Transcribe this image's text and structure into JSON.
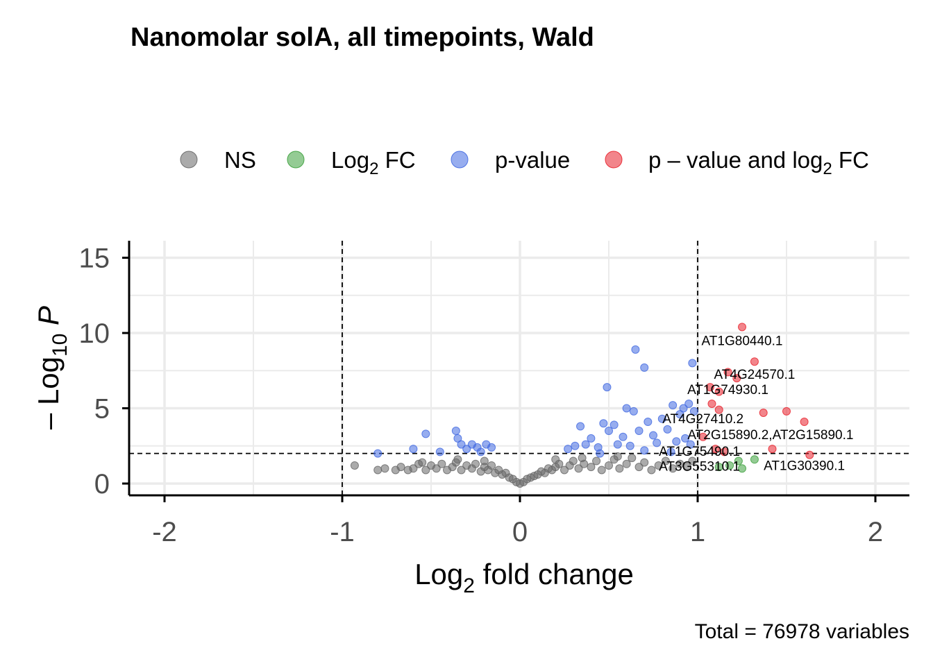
{
  "chart_data": {
    "type": "scatter",
    "title": "Nanomolar solA, all timepoints, Wald",
    "xlabel": "Log2 fold change",
    "ylabel": "-Log10 P",
    "caption": "Total = 76978 variables",
    "xlim": [
      -2.2,
      2.2
    ],
    "ylim": [
      -0.8,
      16.0
    ],
    "x_ticks": [
      -2,
      -1,
      0,
      1,
      2
    ],
    "y_ticks": [
      0,
      5,
      10,
      15
    ],
    "x_tick_labels": [
      "-2",
      "-1",
      "0",
      "1",
      "2"
    ],
    "y_tick_labels": [
      "0",
      "5",
      "10",
      "15"
    ],
    "grid": true,
    "legend_position": "top",
    "fc_cutoff": 1,
    "p_cutoff_log10": 2,
    "colors": {
      "NS": "#666666",
      "Log2 FC": "#3ca03c",
      "p-value": "#4169e1",
      "p - value and log2 FC": "#e8212b",
      "grid": "#ebebeb",
      "axis": "#000000"
    },
    "legend": [
      {
        "key": "NS",
        "base": "NS",
        "sub": "",
        "tail": ""
      },
      {
        "key": "Log2 FC",
        "base": "Log",
        "sub": "2",
        "tail": " FC"
      },
      {
        "key": "p-value",
        "base": "p-value",
        "sub": "",
        "tail": ""
      },
      {
        "key": "p - value and log2 FC",
        "base": "p – value and log",
        "sub": "2",
        "tail": " FC"
      }
    ],
    "series": [
      {
        "name": "NS",
        "color": "#666666",
        "points": [
          [
            -0.93,
            1.2
          ],
          [
            -0.8,
            0.9
          ],
          [
            -0.76,
            1.0
          ],
          [
            -0.7,
            0.9
          ],
          [
            -0.67,
            1.1
          ],
          [
            -0.63,
            0.9
          ],
          [
            -0.6,
            1.0
          ],
          [
            -0.57,
            1.3
          ],
          [
            -0.53,
            0.9
          ],
          [
            -0.5,
            1.2
          ],
          [
            -0.47,
            1.0
          ],
          [
            -0.44,
            1.3
          ],
          [
            -0.41,
            0.9
          ],
          [
            -0.38,
            1.1
          ],
          [
            -0.36,
            1.4
          ],
          [
            -0.33,
            0.9
          ],
          [
            -0.3,
            1.2
          ],
          [
            -0.27,
            1.0
          ],
          [
            -0.25,
            1.3
          ],
          [
            -0.22,
            0.8
          ],
          [
            -0.2,
            1.1
          ],
          [
            -0.18,
            0.9
          ],
          [
            -0.16,
            1.2
          ],
          [
            -0.14,
            0.7
          ],
          [
            -0.12,
            0.9
          ],
          [
            -0.1,
            0.6
          ],
          [
            -0.08,
            0.7
          ],
          [
            -0.06,
            0.4
          ],
          [
            -0.04,
            0.3
          ],
          [
            -0.02,
            0.1
          ],
          [
            0.0,
            0.0
          ],
          [
            0.02,
            0.1
          ],
          [
            0.04,
            0.3
          ],
          [
            0.06,
            0.4
          ],
          [
            0.08,
            0.5
          ],
          [
            0.1,
            0.6
          ],
          [
            0.12,
            0.8
          ],
          [
            0.14,
            0.7
          ],
          [
            0.16,
            1.0
          ],
          [
            0.18,
            0.9
          ],
          [
            0.2,
            1.1
          ],
          [
            0.22,
            1.3
          ],
          [
            0.25,
            0.9
          ],
          [
            0.28,
            1.2
          ],
          [
            0.3,
            1.5
          ],
          [
            0.33,
            1.0
          ],
          [
            0.36,
            1.3
          ],
          [
            0.4,
            1.1
          ],
          [
            0.43,
            1.5
          ],
          [
            0.46,
            0.9
          ],
          [
            0.5,
            1.2
          ],
          [
            0.53,
            1.6
          ],
          [
            0.56,
            1.0
          ],
          [
            0.6,
            1.3
          ],
          [
            0.63,
            1.7
          ],
          [
            0.67,
            1.1
          ],
          [
            0.7,
            1.4
          ],
          [
            0.74,
            0.9
          ],
          [
            0.78,
            1.2
          ],
          [
            0.82,
            1.5
          ],
          [
            0.86,
            1.0
          ],
          [
            0.9,
            1.3
          ],
          [
            0.94,
            1.1
          ],
          [
            0.97,
            1.5
          ],
          [
            -0.35,
            1.6
          ],
          [
            0.35,
            1.7
          ],
          [
            -0.55,
            1.4
          ],
          [
            0.55,
            1.8
          ],
          [
            -0.2,
            1.5
          ],
          [
            0.2,
            1.6
          ]
        ]
      },
      {
        "name": "Log2 FC",
        "color": "#3ca03c",
        "points": [
          [
            1.12,
            1.1
          ],
          [
            1.18,
            1.2
          ],
          [
            1.23,
            1.5
          ],
          [
            1.25,
            1.0
          ],
          [
            1.32,
            1.6
          ]
        ]
      },
      {
        "name": "p-value",
        "color": "#4169e1",
        "points": [
          [
            -0.8,
            2.0
          ],
          [
            -0.6,
            2.3
          ],
          [
            -0.53,
            3.3
          ],
          [
            -0.36,
            3.5
          ],
          [
            -0.35,
            3.0
          ],
          [
            -0.33,
            2.6
          ],
          [
            -0.3,
            2.3
          ],
          [
            -0.27,
            2.6
          ],
          [
            -0.24,
            2.4
          ],
          [
            -0.22,
            2.1
          ],
          [
            -0.19,
            2.6
          ],
          [
            -0.16,
            2.4
          ],
          [
            -0.45,
            2.1
          ],
          [
            0.27,
            2.3
          ],
          [
            0.31,
            2.5
          ],
          [
            0.34,
            3.8
          ],
          [
            0.37,
            2.6
          ],
          [
            0.4,
            3.0
          ],
          [
            0.44,
            2.4
          ],
          [
            0.47,
            4.0
          ],
          [
            0.49,
            6.4
          ],
          [
            0.5,
            3.5
          ],
          [
            0.53,
            3.9
          ],
          [
            0.55,
            2.6
          ],
          [
            0.58,
            3.1
          ],
          [
            0.6,
            5.0
          ],
          [
            0.62,
            2.5
          ],
          [
            0.64,
            4.8
          ],
          [
            0.65,
            8.9
          ],
          [
            0.67,
            3.5
          ],
          [
            0.7,
            7.7
          ],
          [
            0.72,
            4.1
          ],
          [
            0.75,
            3.2
          ],
          [
            0.77,
            2.7
          ],
          [
            0.8,
            4.3
          ],
          [
            0.83,
            3.6
          ],
          [
            0.86,
            5.2
          ],
          [
            0.88,
            2.8
          ],
          [
            0.9,
            4.6
          ],
          [
            0.92,
            5.0
          ],
          [
            0.95,
            5.3
          ],
          [
            0.97,
            8.0
          ],
          [
            0.98,
            4.8
          ],
          [
            0.93,
            3.0
          ],
          [
            0.96,
            2.6
          ],
          [
            0.45,
            2.0
          ],
          [
            0.7,
            2.2
          ],
          [
            0.85,
            2.1
          ]
        ]
      },
      {
        "name": "p - value and log2 FC",
        "color": "#e8212b",
        "points": [
          [
            1.25,
            10.4
          ],
          [
            1.32,
            8.1
          ],
          [
            1.17,
            7.4
          ],
          [
            1.22,
            7.0
          ],
          [
            1.07,
            6.4
          ],
          [
            1.12,
            6.1
          ],
          [
            1.08,
            5.3
          ],
          [
            1.12,
            4.9
          ],
          [
            1.37,
            4.7
          ],
          [
            1.5,
            4.8
          ],
          [
            1.6,
            4.1
          ],
          [
            1.03,
            3.1
          ],
          [
            1.1,
            2.3
          ],
          [
            1.15,
            2.1
          ],
          [
            1.42,
            2.3
          ],
          [
            1.63,
            1.9
          ]
        ]
      }
    ],
    "labels": [
      {
        "text": "AT1G80440.1",
        "x": 1.25,
        "y": 9.2
      },
      {
        "text": "AT4G24570.1",
        "x": 1.32,
        "y": 6.95
      },
      {
        "text": "AT1G74930.1",
        "x": 1.17,
        "y": 5.95
      },
      {
        "text": "AT4G27410.2",
        "x": 1.03,
        "y": 4.0
      },
      {
        "text": "AT2G15890.2,AT2G15890.1",
        "x": 1.41,
        "y": 2.95
      },
      {
        "text": "AT1G75490.1",
        "x": 1.01,
        "y": 1.85
      },
      {
        "text": "AT3G55310.1",
        "x": 1.01,
        "y": 0.85
      },
      {
        "text": "AT1G30390.1",
        "x": 1.6,
        "y": 0.9
      }
    ]
  }
}
